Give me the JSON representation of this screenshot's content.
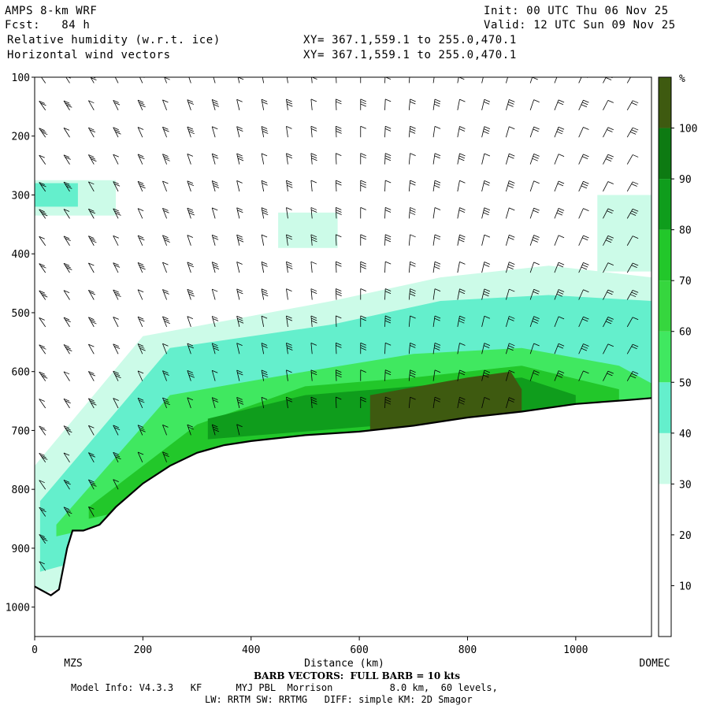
{
  "header": {
    "model": "AMPS 8-km WRF",
    "init": "Init: 00 UTC Thu 06 Nov 25",
    "fcst": "Fcst:   84 h",
    "valid": "Valid: 12 UTC Sun 09 Nov 25",
    "field1": "Relative humidity (w.r.t. ice)",
    "xy1": "XY= 367.1,559.1 to 255.0,470.1",
    "field2": "Horizontal wind vectors",
    "xy2": "XY= 367.1,559.1 to 255.0,470.1"
  },
  "footer": {
    "barb_note": "BARB VECTORS:  FULL BARB = 10 kts",
    "model_info": "Model Info: V4.3.3   KF      MYJ PBL  Morrison          8.0 km,  60 levels,",
    "physics": "LW: RRTM SW: RRTMG   DIFF: simple KM: 2D Smagor"
  },
  "colors": {
    "c30_40": "#ccfbe8",
    "c40_50": "#64efcc",
    "c50_60": "#40e860",
    "c60_70": "#36d63e",
    "c70_80": "#22c72a",
    "c80_90": "#0f9d1c",
    "c90_100": "#0d7a12",
    "c100": "#3e5a10"
  },
  "chart_data": {
    "type": "heatmap",
    "xlabel": "Distance (km)",
    "ylabel": "",
    "xlim": [
      0,
      1140
    ],
    "ylim": [
      1050,
      100
    ],
    "x_ticks": [
      0,
      200,
      400,
      600,
      800,
      1000
    ],
    "y_ticks": [
      100,
      200,
      300,
      400,
      500,
      600,
      700,
      800,
      900,
      1000
    ],
    "start_label": "MZS",
    "end_label": "DOMEC",
    "terrain_pressure": {
      "x": [
        0,
        30,
        45,
        60,
        70,
        90,
        120,
        150,
        200,
        250,
        300,
        350,
        400,
        450,
        500,
        600,
        700,
        800,
        900,
        1000,
        1100,
        1140
      ],
      "p": [
        965,
        980,
        970,
        900,
        870,
        870,
        860,
        830,
        790,
        760,
        738,
        725,
        718,
        713,
        708,
        702,
        692,
        678,
        668,
        655,
        648,
        645
      ]
    },
    "colorbar": {
      "unit": "%",
      "tick_labels": [
        10,
        20,
        30,
        40,
        50,
        60,
        70,
        80,
        90,
        100
      ]
    },
    "humidity_regions": [
      {
        "level": "30-40",
        "x": [
          0,
          150,
          150,
          0
        ],
        "p": [
          275,
          275,
          335,
          335
        ]
      },
      {
        "level": "40-50",
        "x": [
          0,
          80,
          80,
          0
        ],
        "p": [
          280,
          280,
          320,
          320
        ]
      },
      {
        "level": "30-40",
        "x": [
          450,
          560,
          560,
          450
        ],
        "p": [
          330,
          330,
          390,
          390
        ]
      },
      {
        "level": "30-40",
        "x": [
          1040,
          1140,
          1140,
          1040
        ],
        "p": [
          300,
          300,
          430,
          430
        ]
      },
      {
        "level": "30-40",
        "x": [
          0,
          200,
          550,
          750,
          950,
          1140,
          1140,
          0
        ],
        "p": [
          760,
          540,
          480,
          440,
          420,
          440,
          700,
          980
        ]
      },
      {
        "level": "40-50",
        "x": [
          10,
          250,
          550,
          750,
          950,
          1140,
          1140,
          10
        ],
        "p": [
          820,
          560,
          520,
          480,
          470,
          480,
          660,
          940
        ]
      },
      {
        "level": "50-60",
        "x": [
          40,
          250,
          500,
          700,
          900,
          1080,
          1140,
          1140,
          40
        ],
        "p": [
          860,
          640,
          600,
          570,
          560,
          590,
          620,
          650,
          880
        ]
      },
      {
        "level": "70-80",
        "x": [
          100,
          300,
          500,
          700,
          900,
          1080,
          1080,
          100
        ],
        "p": [
          830,
          690,
          625,
          610,
          590,
          630,
          650,
          850
        ]
      },
      {
        "level": "80-90",
        "x": [
          320,
          500,
          700,
          900,
          1000,
          1000,
          320
        ],
        "p": [
          680,
          640,
          625,
          610,
          640,
          665,
          715
        ]
      },
      {
        "level": "100",
        "x": [
          620,
          800,
          880,
          900,
          900,
          620
        ],
        "p": [
          640,
          610,
          600,
          630,
          670,
          700
        ]
      }
    ],
    "wind_vectors": "barbs at 26 columns x 20 pressure levels, full barb = 10 kts"
  }
}
